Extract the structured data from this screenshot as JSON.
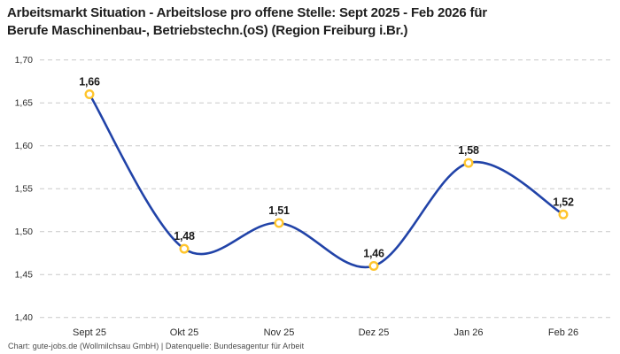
{
  "title": {
    "line1": "Arbeitsmarkt Situation - Arbeitslose pro offene Stelle: Sept 2025 - Feb 2026 für",
    "line2": "Berufe Maschinenbau-, Betriebstechn.(oS) (Region Freiburg i.Br.)"
  },
  "footer": "Chart: gute-jobs.de (Wollmilchsau GmbH) | Datenquelle: Bundesagentur für Arbeit",
  "chart_data": {
    "type": "line",
    "title": "Arbeitsmarkt Situation - Arbeitslose pro offene Stelle: Sept 2025 - Feb 2026 für Berufe Maschinenbau-, Betriebstechn.(oS) (Region Freiburg i.Br.)",
    "categories": [
      "Sept 25",
      "Okt 25",
      "Nov 25",
      "Dez 25",
      "Jan 26",
      "Feb 26"
    ],
    "values": [
      1.66,
      1.48,
      1.51,
      1.46,
      1.58,
      1.52
    ],
    "value_labels": [
      "1,66",
      "1,48",
      "1,51",
      "1,46",
      "1,58",
      "1,52"
    ],
    "series_name": "Arbeitslose pro offene Stelle",
    "xlabel": "",
    "ylabel": "",
    "ylim": [
      1.4,
      1.7
    ],
    "y_ticks": [
      1.7,
      1.65,
      1.6,
      1.55,
      1.5,
      1.45,
      1.4
    ],
    "y_tick_labels": [
      "1,70",
      "1,65",
      "1,60",
      "1,55",
      "1,50",
      "1,45",
      "1,40"
    ],
    "grid": "horizontal-dashed",
    "legend": "none",
    "line_style": "smooth-spline",
    "marker": "open-circle",
    "colors": {
      "line": "#2143a8",
      "marker_ring": "#ffc52c",
      "marker_fill": "#ffffff",
      "grid": "#c9c9c9",
      "title_text": "#1f1f1f",
      "data_label_text": "#1a1a1a",
      "axis_text": "#2b2b2b",
      "footer_text": "#4a4a4a",
      "background": "#ffffff"
    }
  }
}
